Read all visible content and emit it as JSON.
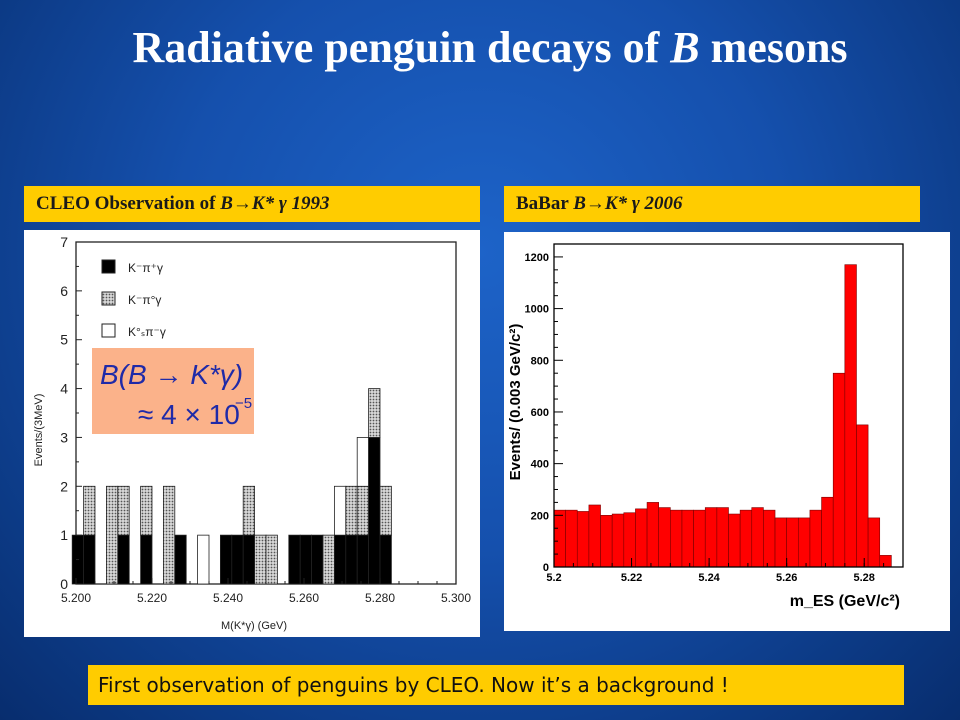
{
  "slide": {
    "title_pre": "Radiative penguin decays of ",
    "title_b": "B",
    "title_post": " mesons",
    "caption": "First observation of penguins by CLEO.  Now it’s a background !"
  },
  "left_banner": {
    "pre": "CLEO Observation of ",
    "b": "B",
    "arrow": "→",
    "k": "K*",
    "gamma": " γ ",
    "year": " 1993"
  },
  "right_banner": {
    "pre": "BaBar ",
    "b": "B",
    "arrow": "→",
    "k": "K*",
    "gamma": " γ ",
    "year": " 2006"
  },
  "formula": {
    "line1": "B(B → K*γ)",
    "line2": "≈ 4 × 10",
    "exp": "−5"
  },
  "chart_data": [
    {
      "type": "bar",
      "stacked": true,
      "xlabel": "M(K*γ) (GeV)",
      "ylabel": "Events/(3MeV)",
      "xlim": [
        5.2,
        5.3
      ],
      "ylim": [
        0,
        7
      ],
      "xticks": [
        "5.200",
        "5.220",
        "5.240",
        "5.260",
        "5.280",
        "5.300"
      ],
      "yticks": [
        "0",
        "1",
        "2",
        "3",
        "4",
        "5",
        "6",
        "7"
      ],
      "legend_position": "top-left",
      "bin_width": 0.003,
      "bins": [
        5.2005,
        5.2035,
        5.2095,
        5.2125,
        5.2185,
        5.2245,
        5.2275,
        5.2335,
        5.2395,
        5.2425,
        5.2455,
        5.2485,
        5.2515,
        5.2575,
        5.2605,
        5.2635,
        5.2665,
        5.2695,
        5.2725,
        5.2755,
        5.2785,
        5.2815
      ],
      "series": [
        {
          "name": "K⁻π⁺γ",
          "fill": "#000000",
          "values": [
            1,
            1,
            0,
            1,
            1,
            0,
            1,
            0,
            1,
            1,
            1,
            0,
            0,
            1,
            1,
            1,
            0,
            1,
            1,
            1,
            3,
            1
          ]
        },
        {
          "name": "K⁻π°γ",
          "fill": "#9a9a9a",
          "values": [
            0,
            1,
            2,
            1,
            1,
            2,
            0,
            0,
            0,
            0,
            1,
            1,
            1,
            0,
            0,
            0,
            1,
            0,
            1,
            1,
            1,
            1
          ]
        },
        {
          "name": "K°ₛπ⁻γ",
          "fill": "#ffffff",
          "values": [
            0,
            0,
            0,
            0,
            0,
            0,
            0,
            1,
            0,
            0,
            0,
            0,
            0,
            0,
            0,
            0,
            0,
            1,
            0,
            1,
            0,
            0
          ]
        }
      ]
    },
    {
      "type": "bar",
      "xlabel": "m_ES (GeV/c²)",
      "ylabel": "Events/ (0.003 GeV/c²)",
      "xlim": [
        5.2,
        5.29
      ],
      "ylim": [
        0,
        1250
      ],
      "xticks": [
        "5.2",
        "5.22",
        "5.24",
        "5.26",
        "5.28"
      ],
      "yticks": [
        "0",
        "200",
        "400",
        "600",
        "800",
        "1000",
        "1200"
      ],
      "bin_width": 0.003,
      "x_start": 5.2,
      "fill": "#ff0000",
      "values": [
        220,
        220,
        215,
        240,
        200,
        205,
        210,
        225,
        250,
        230,
        220,
        220,
        220,
        230,
        230,
        205,
        220,
        230,
        220,
        190,
        190,
        190,
        220,
        270,
        750,
        1170,
        550,
        190,
        45,
        0
      ]
    }
  ]
}
